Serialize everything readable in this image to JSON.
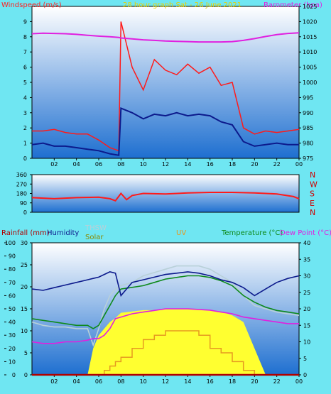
{
  "colors": {
    "background": "#6fe6f2",
    "plot_top": "#ffffff",
    "plot_bottom": "#1e6fd0",
    "axis_text": "#000000",
    "wind_label": "#ff2020",
    "baro_label": "#e020e0",
    "title": "#e8d000",
    "gust": "#ff1a1a",
    "avg": "#0c1a8c",
    "baro": "#e020e0",
    "dir": "#ff1a1a",
    "dir_axis": "#d00000",
    "humidity": "#0c1a8c",
    "solar": "#ffff30",
    "uv": "#e69a20",
    "temp": "#0e8a1c",
    "thsw": "#b8d0d8",
    "dew": "#e020e0",
    "rain": "#b00000"
  },
  "charts": {
    "wind": {
      "title": "28 hour graph Sat - 26 June 2021",
      "ylabel": "Windspeed (m/s)",
      "y2label": "Barometer (hpa)"
    },
    "direction": {
      "compass": [
        "N",
        "W",
        "S",
        "E",
        "N"
      ]
    },
    "bottom": {
      "rain_label": "Rainfall (mm)",
      "humidity_label": "Humidity",
      "thsw_label": "THSW",
      "solar_label": "Solar",
      "uv_label": "UV",
      "temp_label": "Temperature (°C)",
      "dew_label": "Dew Point (°C)"
    }
  },
  "chart_data": [
    {
      "type": "line",
      "title": "28 hour graph Sat - 26 June 2021",
      "xlabel": "",
      "ylabel": "Windspeed (m/s)",
      "y2label": "Barometer (hpa)",
      "x_ticks": [
        "02",
        "04",
        "06",
        "08",
        "10",
        "12",
        "14",
        "16",
        "18",
        "20",
        "22",
        "00"
      ],
      "ylim": [
        0,
        10
      ],
      "y_ticks": [
        0,
        1,
        2,
        3,
        4,
        5,
        6,
        7,
        8,
        9
      ],
      "y2lim": [
        975,
        1025
      ],
      "y2_ticks": [
        975,
        980,
        985,
        990,
        995,
        1000,
        1005,
        1010,
        1015,
        1020,
        1025
      ],
      "x": [
        0,
        1,
        2,
        3,
        4,
        5,
        6,
        7,
        7.8,
        8,
        9,
        10,
        11,
        12,
        13,
        14,
        15,
        16,
        17,
        18,
        19,
        20,
        21,
        22,
        23,
        24
      ],
      "series": [
        {
          "name": "gust",
          "values": [
            1.8,
            1.8,
            1.9,
            1.7,
            1.6,
            1.6,
            1.2,
            0.7,
            0.5,
            9.0,
            6.0,
            4.5,
            6.5,
            5.8,
            5.5,
            6.2,
            5.6,
            6.0,
            4.8,
            5.0,
            2.0,
            1.6,
            1.8,
            1.7,
            1.8,
            1.9
          ]
        },
        {
          "name": "average",
          "values": [
            0.9,
            1.0,
            0.8,
            0.8,
            0.7,
            0.6,
            0.5,
            0.3,
            0.2,
            3.3,
            3.0,
            2.6,
            2.9,
            2.8,
            3.0,
            2.8,
            2.9,
            2.8,
            2.4,
            2.2,
            1.1,
            0.8,
            0.9,
            1.0,
            0.9,
            0.9
          ]
        },
        {
          "name": "barometer",
          "axis": "y2",
          "values": [
            1016,
            1016.2,
            1016.1,
            1016,
            1015.8,
            1015.5,
            1015.2,
            1015,
            1014.8,
            1014.6,
            1014.3,
            1014,
            1013.8,
            1013.6,
            1013.5,
            1013.4,
            1013.3,
            1013.3,
            1013.3,
            1013.4,
            1013.8,
            1014.4,
            1015.1,
            1015.7,
            1016.1,
            1016.3
          ]
        }
      ]
    },
    {
      "type": "line",
      "title": "",
      "ylim": [
        0,
        360
      ],
      "y_ticks": [
        0,
        90,
        180,
        270,
        360
      ],
      "x": [
        0,
        2,
        4,
        6,
        7,
        7.5,
        8,
        8.5,
        9,
        10,
        12,
        14,
        16,
        18,
        20,
        22,
        23.5,
        24
      ],
      "series": [
        {
          "name": "direction",
          "values": [
            140,
            130,
            140,
            145,
            130,
            110,
            180,
            120,
            160,
            180,
            175,
            185,
            190,
            190,
            185,
            175,
            150,
            130
          ]
        }
      ]
    },
    {
      "type": "area",
      "title": "",
      "x_ticks": [
        "02",
        "04",
        "06",
        "08",
        "10",
        "12",
        "14",
        "16",
        "18",
        "20",
        "22",
        "00"
      ],
      "humidity_lim": [
        0,
        100
      ],
      "humidity_ticks": [
        0,
        10,
        20,
        30,
        40,
        50,
        60,
        70,
        80,
        90,
        100
      ],
      "rain_lim": [
        0,
        30
      ],
      "rain_ticks": [
        0,
        5,
        10,
        15,
        20,
        25,
        30
      ],
      "temp_lim": [
        0,
        40
      ],
      "temp_ticks": [
        0,
        5,
        10,
        15,
        20,
        25,
        30,
        35,
        40
      ],
      "x": [
        0,
        1,
        2,
        3,
        4,
        5,
        5.5,
        6,
        6.5,
        7,
        7.5,
        8,
        9,
        10,
        11,
        12,
        13,
        14,
        15,
        16,
        17,
        18,
        19,
        20,
        21,
        22,
        23,
        24
      ],
      "series": [
        {
          "name": "humidity",
          "axis": "humidity",
          "values": [
            65,
            64,
            66,
            68,
            70,
            72,
            73,
            74,
            76,
            78,
            77,
            60,
            70,
            72,
            74,
            76,
            77,
            78,
            77,
            75,
            72,
            70,
            66,
            60,
            65,
            70,
            73,
            75
          ]
        },
        {
          "name": "temperature",
          "axis": "temp",
          "values": [
            17,
            16.5,
            16,
            15.5,
            15,
            15,
            14,
            15,
            18,
            21,
            24,
            26,
            26.5,
            27,
            28,
            29,
            29.5,
            30,
            30,
            29.5,
            28.5,
            27,
            24,
            22,
            20.5,
            19.5,
            19,
            18.5
          ]
        },
        {
          "name": "thsw",
          "axis": "temp",
          "values": [
            16,
            15,
            14.5,
            14.5,
            14,
            14,
            9,
            14,
            20,
            24,
            26,
            27,
            28,
            30,
            31,
            32,
            33,
            33,
            33,
            32,
            30,
            28,
            24,
            21,
            20,
            19,
            18.5,
            18
          ]
        },
        {
          "name": "dew_point",
          "axis": "temp",
          "values": [
            10,
            9.5,
            9.5,
            10,
            10,
            10.5,
            11,
            11,
            12,
            14,
            17,
            17.5,
            18.5,
            19,
            19.5,
            20,
            20,
            20,
            19.8,
            19.6,
            19,
            18.5,
            17.5,
            17,
            16.5,
            16,
            15.5,
            15.5
          ]
        },
        {
          "name": "solar",
          "axis": "humidity",
          "values": [
            0,
            0,
            0,
            0,
            0,
            0,
            20,
            30,
            35,
            40,
            43,
            47,
            48,
            49,
            49,
            50,
            50,
            50,
            50,
            49,
            48,
            45,
            40,
            20,
            0,
            0,
            0,
            0
          ]
        },
        {
          "name": "uv",
          "axis": "rain",
          "values": [
            0,
            0,
            0,
            0,
            0,
            0,
            0,
            0,
            1,
            2,
            3,
            4,
            6,
            8,
            9,
            10,
            10,
            10,
            9,
            6,
            5,
            3,
            1,
            0,
            0,
            0,
            0,
            0
          ]
        },
        {
          "name": "rainfall",
          "axis": "rain",
          "values": [
            0,
            0,
            0,
            0,
            0,
            0,
            0,
            0,
            0,
            0,
            0,
            0,
            0,
            0,
            0,
            0,
            0,
            0,
            0,
            0,
            0,
            0,
            0,
            0,
            0,
            0,
            0,
            0
          ]
        }
      ]
    }
  ]
}
